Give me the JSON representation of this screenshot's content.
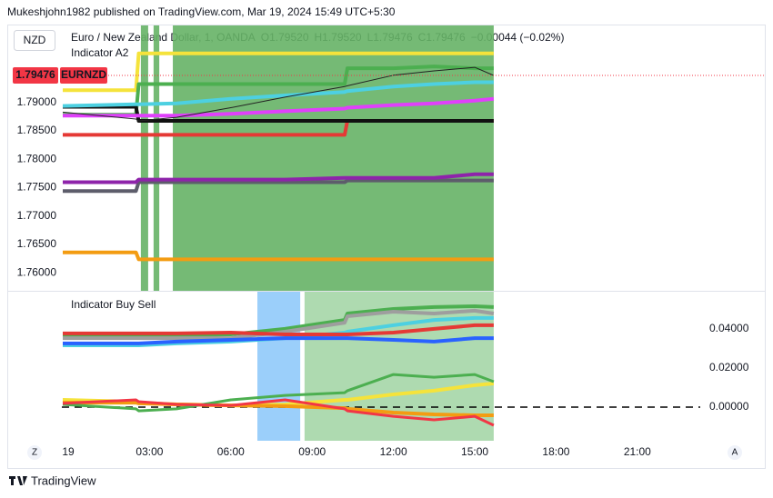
{
  "header": {
    "published": "Mukeshjohn1982 published on TradingView.com, Mar 19, 2024 15:49 UTC+5:30",
    "currency": "NZD",
    "symbol": "Euro / New Zealand Dollar, 1, OANDA",
    "ohlc": [
      {
        "label": "O",
        "value": "1.79520"
      },
      {
        "label": "H",
        "value": "1.79520"
      },
      {
        "label": "L",
        "value": "1.79476"
      },
      {
        "label": "C",
        "value": "1.79476"
      }
    ],
    "change": "−0.00044 (−0.02%)",
    "ticker": "EURNZD"
  },
  "chart_data": [
    {
      "type": "line",
      "title": "Indicator A2",
      "y_axis_side": "left",
      "last_price_line": true,
      "x": [
        -0.2,
        2.5,
        2.6,
        4,
        6,
        8,
        10.2,
        10.3,
        12,
        13.5,
        15,
        15.7
      ],
      "xlim": [
        -0.235,
        23.32
      ],
      "ylim": [
        1.75685,
        1.80371
      ],
      "yticks": [
        {
          "value": 1.76,
          "label": "1.76000"
        },
        {
          "value": 1.765,
          "label": "1.76500"
        },
        {
          "value": 1.77,
          "label": "1.77000"
        },
        {
          "value": 1.775,
          "label": "1.77500"
        },
        {
          "value": 1.78,
          "label": "1.78000"
        },
        {
          "value": 1.785,
          "label": "1.78500"
        },
        {
          "value": 1.79,
          "label": "1.79000"
        }
      ],
      "shaded_ranges": [
        {
          "from": 2.68,
          "to": 2.95,
          "color": "#66b266"
        },
        {
          "from": 3.15,
          "to": 3.36,
          "color": "#66b266"
        },
        {
          "from": 3.86,
          "to": 15.7,
          "color": "#66b266"
        }
      ],
      "series": [
        {
          "color": "#f5e33b",
          "line_width": 4,
          "values": [
            1.79216,
            1.79216,
            1.79864,
            1.79864,
            1.79864,
            1.79864,
            1.79864,
            1.79864,
            1.79864,
            1.79864,
            1.79864,
            1.79864
          ]
        },
        {
          "color": "#4caf50",
          "line_width": 4,
          "values": [
            1.78784,
            1.78784,
            1.79324,
            1.79324,
            1.79324,
            1.79324,
            1.79324,
            1.79602,
            1.79602,
            1.79633,
            1.79602,
            1.79602
          ]
        },
        {
          "color": "#e53935",
          "line_width": 4,
          "values": [
            1.78429,
            1.78429,
            1.78429,
            1.78429,
            1.78429,
            1.78429,
            1.78429,
            1.78676,
            1.78676,
            1.78676,
            1.78676,
            1.78676
          ]
        },
        {
          "color": "#111111",
          "line_width": 4,
          "values": [
            1.78923,
            1.78923,
            1.78676,
            1.78676,
            1.78676,
            1.78676,
            1.78676,
            1.78676,
            1.78676,
            1.78676,
            1.78676,
            1.78676
          ]
        },
        {
          "color": "#4dd0e1",
          "line_width": 4,
          "values": [
            1.78938,
            1.78969,
            1.78969,
            1.78985,
            1.79062,
            1.79123,
            1.79185,
            1.79201,
            1.79278,
            1.79324,
            1.79355,
            1.79355
          ]
        },
        {
          "color": "#e040fb",
          "line_width": 4,
          "values": [
            1.78769,
            1.78769,
            1.78769,
            1.78769,
            1.78799,
            1.78846,
            1.78892,
            1.78907,
            1.78954,
            1.78985,
            1.79031,
            1.79062
          ]
        },
        {
          "color": "#5d5d6b",
          "line_width": 4,
          "values": [
            1.77441,
            1.77441,
            1.77596,
            1.77596,
            1.77596,
            1.77596,
            1.77596,
            1.77627,
            1.77627,
            1.77627,
            1.77627,
            1.77627
          ]
        },
        {
          "color": "#8e24aa",
          "line_width": 4,
          "values": [
            1.77596,
            1.77596,
            1.77642,
            1.77642,
            1.77642,
            1.77642,
            1.77673,
            1.77673,
            1.77673,
            1.77673,
            1.77735,
            1.77735
          ]
        },
        {
          "color": "#f39c12",
          "line_width": 4,
          "values": [
            1.76361,
            1.76361,
            1.76238,
            1.76238,
            1.76238,
            1.76238,
            1.76238,
            1.76238,
            1.76238,
            1.76238,
            1.76238,
            1.76238
          ]
        },
        {
          "color": "#222222",
          "line_width": 1,
          "values": [
            1.7883,
            1.78707,
            1.78676,
            1.78738,
            1.78907,
            1.79093,
            1.79278,
            1.79293,
            1.79478,
            1.79555,
            1.79617,
            1.79476
          ]
        }
      ]
    },
    {
      "type": "line",
      "title": "Indicator Buy Sell",
      "y_axis_side": "right",
      "hline": 0,
      "x": [
        -0.2,
        2.5,
        2.6,
        4,
        6,
        8,
        10.2,
        10.3,
        12,
        13.5,
        15,
        15.7
      ],
      "xlim": [
        -0.235,
        23.32
      ],
      "ylim": [
        -0.0172,
        0.0595
      ],
      "xticks": [
        {
          "value": 0,
          "label": "19"
        },
        {
          "value": 3,
          "label": "03:00"
        },
        {
          "value": 6,
          "label": "06:00"
        },
        {
          "value": 9,
          "label": "09:00"
        },
        {
          "value": 12,
          "label": "12:00"
        },
        {
          "value": 15,
          "label": "15:00"
        },
        {
          "value": 18,
          "label": "18:00"
        },
        {
          "value": 21,
          "label": "21:00"
        }
      ],
      "yticks": [
        {
          "value": 0,
          "label": "0.00000"
        },
        {
          "value": 0.02,
          "label": "0.02000"
        },
        {
          "value": 0.04,
          "label": "0.04000"
        }
      ],
      "shaded_ranges": [
        {
          "from": 6.98,
          "to": 8.56,
          "color": "#90caf9"
        },
        {
          "from": 8.72,
          "to": 15.7,
          "color": "#a5d6a7"
        }
      ],
      "series": [
        {
          "color": "#4caf50",
          "line_width": 4,
          "values": [
            0.0363,
            0.0363,
            0.0363,
            0.0363,
            0.0372,
            0.04,
            0.0446,
            0.0479,
            0.0502,
            0.0512,
            0.0516,
            0.0512
          ]
        },
        {
          "color": "#9e9e9e",
          "line_width": 4,
          "values": [
            0.0353,
            0.0353,
            0.0353,
            0.0353,
            0.0353,
            0.0386,
            0.0432,
            0.0465,
            0.0488,
            0.0479,
            0.0493,
            0.0479
          ]
        },
        {
          "color": "#4dd0e1",
          "line_width": 4,
          "values": [
            0.0316,
            0.0316,
            0.0316,
            0.0326,
            0.0335,
            0.0353,
            0.0381,
            0.0386,
            0.0419,
            0.0446,
            0.0456,
            0.0456
          ]
        },
        {
          "color": "#e53935",
          "line_width": 4,
          "values": [
            0.0377,
            0.0377,
            0.0377,
            0.0377,
            0.0381,
            0.0372,
            0.0372,
            0.0372,
            0.0381,
            0.04,
            0.0419,
            0.0419
          ]
        },
        {
          "color": "#2962ff",
          "line_width": 4,
          "values": [
            0.0326,
            0.0326,
            0.0326,
            0.0335,
            0.0344,
            0.0353,
            0.0353,
            0.0353,
            0.0344,
            0.0335,
            0.0353,
            0.0353
          ]
        },
        {
          "color": "#f5e33b",
          "line_width": 4,
          "values": [
            0.0037,
            0.0028,
            0.0023,
            0.0014,
            0.0009,
            0.0014,
            0.0037,
            0.0037,
            0.0065,
            0.0084,
            0.0112,
            0.0121
          ]
        },
        {
          "color": "#f39c12",
          "line_width": 4,
          "values": [
            0.0023,
            0.0023,
            0.0019,
            0.0014,
            0.0009,
            0.0005,
            -0.0005,
            -0.0009,
            -0.0028,
            -0.0037,
            -0.0042,
            -0.0042
          ]
        },
        {
          "color": "#4caf50",
          "line_width": 3,
          "values": [
            0.0014,
            -0.0009,
            -0.0019,
            -0.0009,
            0.0037,
            0.006,
            0.0074,
            0.0084,
            0.0167,
            0.0153,
            0.0167,
            0.013
          ]
        },
        {
          "color": "#f23645",
          "line_width": 3,
          "values": [
            0.0019,
            0.0037,
            0.0028,
            0.0014,
            0.0009,
            0.0037,
            -0.0009,
            -0.0019,
            -0.0047,
            -0.0065,
            -0.0047,
            -0.0093
          ]
        }
      ]
    }
  ],
  "footer": {
    "left_button": "Z",
    "right_button": "A",
    "brand": "TradingView"
  }
}
